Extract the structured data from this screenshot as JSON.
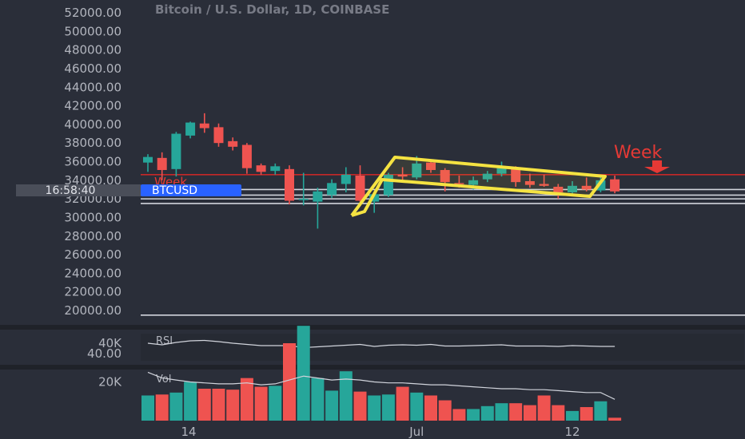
{
  "title": "Bitcoin / U.S. Dollar, 1D, COINBASE",
  "chart_data": {
    "type": "candlestick",
    "price_axis": {
      "ticks": [
        "52000.00",
        "50000.00",
        "48000.00",
        "46000.00",
        "44000.00",
        "42000.00",
        "40000.00",
        "38000.00",
        "36000.00",
        "34000.00",
        "32000.00",
        "30000.00",
        "28000.00",
        "26000.00",
        "24000.00",
        "22000.00",
        "20000.00"
      ],
      "range": [
        18000,
        53000
      ]
    },
    "time_axis": {
      "ticks": [
        "14",
        "Jul",
        "12"
      ]
    },
    "time_label": "16:58:40",
    "symbol_label": "BTCUSD",
    "week_label_left": "Week",
    "week_label_right": "Week",
    "levels": [
      {
        "price": 34600,
        "color": "#c62828"
      },
      {
        "price": 33000,
        "color": "#d1d4dc"
      },
      {
        "price": 32400,
        "color": "#d1d4dc"
      },
      {
        "price": 32000,
        "color": "#d1d4dc"
      },
      {
        "price": 31500,
        "color": "#d1d4dc"
      },
      {
        "price": 19500,
        "color": "#d1d4dc"
      }
    ],
    "candles": [
      {
        "o": 35900,
        "h": 36800,
        "l": 34900,
        "c": 36500
      },
      {
        "o": 36400,
        "h": 37000,
        "l": 34000,
        "c": 35100
      },
      {
        "o": 35200,
        "h": 39200,
        "l": 34400,
        "c": 39000
      },
      {
        "o": 38800,
        "h": 40300,
        "l": 38500,
        "c": 40200
      },
      {
        "o": 40100,
        "h": 41200,
        "l": 39100,
        "c": 39600
      },
      {
        "o": 39700,
        "h": 40100,
        "l": 37600,
        "c": 38000
      },
      {
        "o": 38200,
        "h": 38600,
        "l": 37200,
        "c": 37600
      },
      {
        "o": 37800,
        "h": 38000,
        "l": 34700,
        "c": 35300
      },
      {
        "o": 35600,
        "h": 35800,
        "l": 34600,
        "c": 34900
      },
      {
        "o": 35000,
        "h": 35800,
        "l": 34600,
        "c": 35500
      },
      {
        "o": 35200,
        "h": 35600,
        "l": 31400,
        "c": 31800
      },
      {
        "o": 31900,
        "h": 34800,
        "l": 31300,
        "c": 32000
      },
      {
        "o": 31700,
        "h": 33200,
        "l": 28800,
        "c": 32800
      },
      {
        "o": 32400,
        "h": 34100,
        "l": 32100,
        "c": 33700
      },
      {
        "o": 33600,
        "h": 35400,
        "l": 32700,
        "c": 34600
      },
      {
        "o": 34500,
        "h": 35600,
        "l": 31700,
        "c": 31800
      },
      {
        "o": 31700,
        "h": 32700,
        "l": 30500,
        "c": 32500
      },
      {
        "o": 32400,
        "h": 34800,
        "l": 32200,
        "c": 34600
      },
      {
        "o": 34600,
        "h": 35400,
        "l": 33900,
        "c": 34400
      },
      {
        "o": 34300,
        "h": 36600,
        "l": 34100,
        "c": 35800
      },
      {
        "o": 35900,
        "h": 36200,
        "l": 34800,
        "c": 35100
      },
      {
        "o": 35100,
        "h": 35300,
        "l": 32800,
        "c": 33800
      },
      {
        "o": 33700,
        "h": 34500,
        "l": 33200,
        "c": 33600
      },
      {
        "o": 33500,
        "h": 34400,
        "l": 33000,
        "c": 34000
      },
      {
        "o": 34100,
        "h": 35000,
        "l": 33800,
        "c": 34700
      },
      {
        "o": 34700,
        "h": 36000,
        "l": 34400,
        "c": 35300
      },
      {
        "o": 35200,
        "h": 35500,
        "l": 33300,
        "c": 33800
      },
      {
        "o": 33900,
        "h": 34700,
        "l": 33200,
        "c": 33500
      },
      {
        "o": 33600,
        "h": 34600,
        "l": 33300,
        "c": 33400
      },
      {
        "o": 33300,
        "h": 33600,
        "l": 32000,
        "c": 32700
      },
      {
        "o": 32700,
        "h": 33900,
        "l": 32300,
        "c": 33400
      },
      {
        "o": 33400,
        "h": 34300,
        "l": 32800,
        "c": 33000
      },
      {
        "o": 32900,
        "h": 34500,
        "l": 32700,
        "c": 34000
      },
      {
        "o": 34100,
        "h": 34500,
        "l": 32600,
        "c": 32800
      }
    ],
    "rsi": {
      "label": "RSI",
      "tick": "40.00",
      "values": [
        58,
        54,
        60,
        64,
        65,
        62,
        58,
        55,
        52,
        52,
        52,
        47,
        49,
        51,
        53,
        55,
        50,
        53,
        54,
        53,
        55,
        51,
        51,
        52,
        53,
        54,
        51,
        51,
        51,
        50,
        52,
        51,
        50,
        50
      ]
    },
    "volume": {
      "label": "Vol",
      "ticks": [
        "40K",
        "20K"
      ],
      "values": [
        13000,
        13500,
        14500,
        20000,
        16500,
        16500,
        16000,
        22000,
        17500,
        18000,
        40000,
        49000,
        22000,
        15500,
        25500,
        15000,
        13000,
        13500,
        17500,
        14500,
        13000,
        10500,
        6000,
        6000,
        7500,
        9000,
        9000,
        8000,
        13000,
        8000,
        5000,
        7000,
        10000,
        1500
      ],
      "ma": [
        25000,
        22000,
        21000,
        20000,
        19500,
        19000,
        19000,
        19500,
        18500,
        19000,
        21000,
        23000,
        22000,
        21000,
        21500,
        21000,
        20000,
        19500,
        19500,
        19000,
        18500,
        18500,
        18000,
        17500,
        17000,
        16500,
        16500,
        16000,
        16000,
        15500,
        15000,
        14500,
        14500,
        11000
      ]
    },
    "colors": {
      "up": "#26a69a",
      "down": "#ef5350",
      "flag": "#f5e342",
      "week": "#e53935",
      "axis_text": "#b2b5be",
      "symbol_bg": "#2962ff"
    }
  }
}
